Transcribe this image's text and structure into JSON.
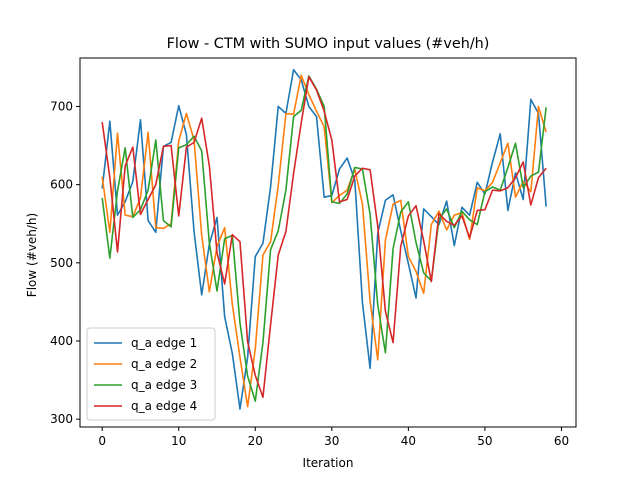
{
  "chart_data": {
    "type": "line",
    "title": "Flow - CTM with SUMO input values (#veh/h)",
    "xlabel": "Iteration",
    "ylabel": "Flow (#veh/h)",
    "xlim": [
      -2.9,
      61.9
    ],
    "ylim": [
      290,
      762
    ],
    "xticks": [
      0,
      10,
      20,
      30,
      40,
      50,
      60
    ],
    "yticks": [
      300,
      400,
      500,
      600,
      700
    ],
    "grid": false,
    "legend_position": "lower-left",
    "x": [
      0,
      1,
      2,
      3,
      4,
      5,
      6,
      7,
      8,
      9,
      10,
      11,
      12,
      13,
      14,
      15,
      16,
      17,
      18,
      19,
      20,
      21,
      22,
      23,
      24,
      25,
      26,
      27,
      28,
      29,
      30,
      31,
      32,
      33,
      34,
      35,
      36,
      37,
      38,
      39,
      40,
      41,
      42,
      43,
      44,
      45,
      46,
      47,
      48,
      49,
      50,
      51,
      52,
      53,
      54,
      55,
      56,
      57,
      58
    ],
    "series": [
      {
        "name": "q_a edge 1",
        "color": "#1f77b4",
        "values": [
          595,
          681,
          561,
          578,
          604,
          683,
          554,
          539,
          649,
          654,
          701,
          664,
          540,
          459,
          524,
          558,
          431,
          384,
          313,
          379,
          508,
          525,
          597,
          700,
          691,
          747,
          734,
          700,
          687,
          584,
          586,
          620,
          634,
          606,
          449,
          365,
          538,
          580,
          587,
          541,
          499,
          455,
          569,
          559,
          549,
          579,
          522,
          571,
          561,
          603,
          588,
          629,
          665,
          567,
          615,
          581,
          709,
          691,
          572
        ]
      },
      {
        "name": "q_a edge 2",
        "color": "#ff7f0e",
        "values": [
          610,
          539,
          666,
          561,
          559,
          583,
          667,
          545,
          544,
          550,
          656,
          691,
          657,
          535,
          463,
          521,
          545,
          447,
          379,
          316,
          390,
          510,
          527,
          599,
          691,
          690,
          740,
          715,
          694,
          674,
          577,
          586,
          593,
          620,
          575,
          451,
          376,
          529,
          575,
          580,
          508,
          489,
          461,
          549,
          566,
          542,
          561,
          564,
          530,
          596,
          592,
          603,
          628,
          653,
          584,
          604,
          591,
          700,
          667
        ]
      },
      {
        "name": "q_a edge 3",
        "color": "#2ca02c",
        "values": [
          583,
          506,
          592,
          647,
          558,
          568,
          593,
          657,
          554,
          546,
          647,
          651,
          662,
          643,
          525,
          464,
          531,
          535,
          423,
          355,
          323,
          398,
          517,
          541,
          593,
          687,
          695,
          739,
          722,
          700,
          578,
          576,
          588,
          622,
          620,
          562,
          446,
          385,
          518,
          565,
          578,
          526,
          487,
          477,
          556,
          569,
          545,
          566,
          555,
          549,
          591,
          597,
          593,
          622,
          653,
          596,
          611,
          616,
          699
        ]
      },
      {
        "name": "q_a edge 4",
        "color": "#d62728",
        "values": [
          680,
          609,
          514,
          624,
          648,
          562,
          581,
          600,
          649,
          650,
          560,
          648,
          654,
          685,
          624,
          513,
          473,
          536,
          527,
          399,
          356,
          328,
          421,
          510,
          540,
          614,
          679,
          738,
          721,
          694,
          657,
          578,
          581,
          611,
          621,
          619,
          547,
          438,
          398,
          521,
          560,
          573,
          528,
          476,
          563,
          553,
          548,
          560,
          532,
          567,
          568,
          593,
          592,
          596,
          609,
          629,
          574,
          609,
          621
        ]
      }
    ]
  }
}
